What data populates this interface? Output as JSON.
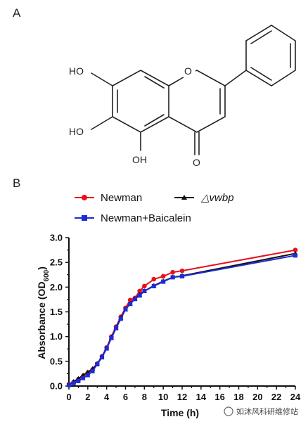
{
  "panels": {
    "a": "A",
    "b": "B"
  },
  "structure": {
    "hydroxyl_7": "HO",
    "hydroxyl_6": "HO",
    "hydroxyl_5": "OH",
    "ring_oxygen": "O",
    "carbonyl_oxygen": "O"
  },
  "watermark": {
    "text": "如沐风科研维修站"
  },
  "chart_data": {
    "type": "line",
    "xlabel": "Time (h)",
    "ylabel_main": "Absorbance (OD",
    "ylabel_sub": "600",
    "ylabel_close": ")",
    "xlim": [
      0,
      24
    ],
    "ylim": [
      0,
      3.0
    ],
    "x_ticks": [
      "0",
      "2",
      "4",
      "6",
      "8",
      "10",
      "12",
      "14",
      "16",
      "18",
      "20",
      "22",
      "24"
    ],
    "y_ticks": [
      "0.0",
      "0.5",
      "1.0",
      "1.5",
      "2.0",
      "2.5",
      "3.0"
    ],
    "legend_position": "top",
    "series": [
      {
        "name": "Newman",
        "name_style": "normal",
        "color": "#e8101a",
        "marker": "circle",
        "x": [
          0,
          0.5,
          1,
          1.5,
          2,
          2.5,
          3,
          3.5,
          4,
          4.5,
          5,
          5.5,
          6,
          6.5,
          7,
          7.5,
          8,
          9,
          10,
          11,
          12,
          24
        ],
        "y": [
          0.04,
          0.08,
          0.14,
          0.2,
          0.27,
          0.33,
          0.45,
          0.6,
          0.78,
          1.0,
          1.2,
          1.4,
          1.58,
          1.74,
          1.78,
          1.92,
          2.02,
          2.16,
          2.22,
          2.3,
          2.33,
          2.75
        ]
      },
      {
        "name": "△vwbp",
        "name_style": "italic",
        "color": "#111111",
        "marker": "triangle",
        "x": [
          0,
          0.5,
          1,
          1.5,
          2,
          2.5,
          3,
          3.5,
          4,
          4.5,
          5,
          5.5,
          6,
          6.5,
          7,
          7.5,
          8,
          9,
          10,
          11,
          12,
          24
        ],
        "y": [
          0.03,
          0.09,
          0.15,
          0.22,
          0.28,
          0.35,
          0.45,
          0.59,
          0.76,
          0.98,
          1.18,
          1.38,
          1.55,
          1.67,
          1.76,
          1.85,
          1.92,
          2.03,
          2.12,
          2.2,
          2.23,
          2.68
        ]
      },
      {
        "name": "Newman+Baicalein",
        "name_style": "normal",
        "color": "#1c2bd6",
        "marker": "square",
        "x": [
          0,
          0.5,
          1,
          1.5,
          2,
          2.5,
          3,
          3.5,
          4,
          4.5,
          5,
          5.5,
          6,
          6.5,
          7,
          7.5,
          8,
          9,
          10,
          11,
          12,
          24
        ],
        "y": [
          0.02,
          0.06,
          0.1,
          0.16,
          0.22,
          0.3,
          0.44,
          0.58,
          0.76,
          0.97,
          1.17,
          1.36,
          1.55,
          1.66,
          1.76,
          1.83,
          1.92,
          2.02,
          2.11,
          2.2,
          2.22,
          2.64
        ]
      }
    ]
  }
}
